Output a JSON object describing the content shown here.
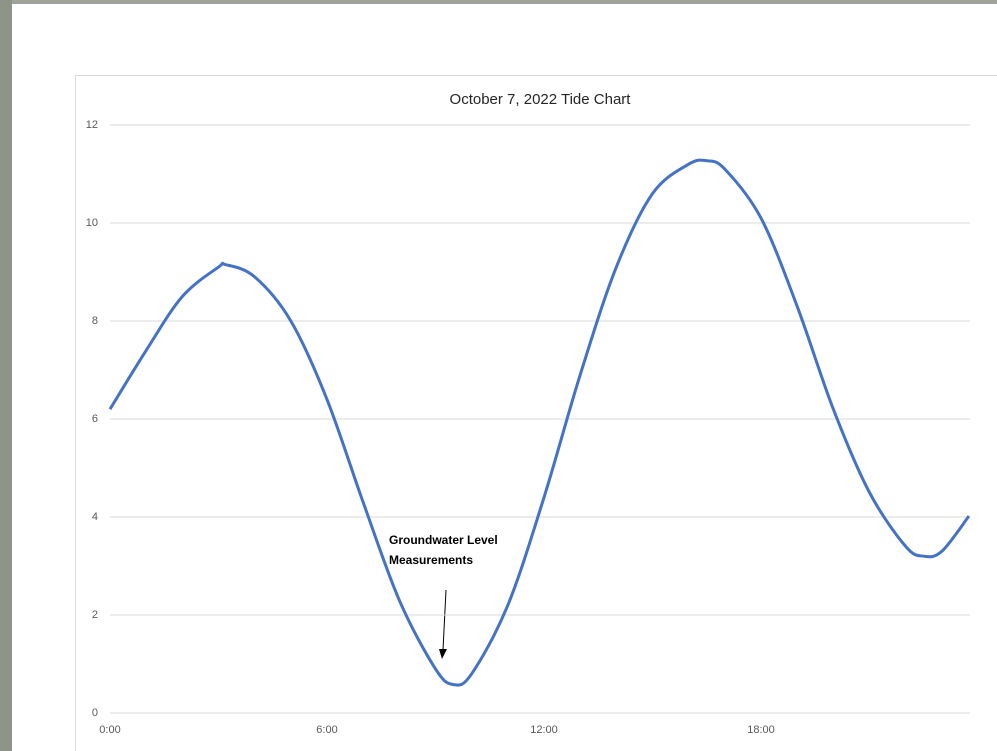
{
  "chart_data": {
    "type": "line",
    "title": "October 7, 2022 Tide Chart",
    "x": [
      0,
      1,
      2,
      3,
      3.2,
      4,
      5,
      6,
      7,
      8,
      9,
      9.5,
      10,
      11,
      12,
      13,
      14,
      15,
      16,
      16.5,
      17,
      18,
      19,
      20,
      21,
      22,
      22.5,
      23,
      23.75
    ],
    "series": [
      {
        "color": "#4472c4",
        "values": [
          6.2,
          7.4,
          8.5,
          9.1,
          9.15,
          8.9,
          8.0,
          6.4,
          4.3,
          2.3,
          0.9,
          0.58,
          0.8,
          2.2,
          4.4,
          6.9,
          9.1,
          10.6,
          11.2,
          11.27,
          11.1,
          10.1,
          8.3,
          6.2,
          4.5,
          3.4,
          3.2,
          3.3,
          4.02
        ]
      }
    ],
    "xlim": [
      0,
      24
    ],
    "xticks": [
      {
        "value": 0,
        "label": "0:00"
      },
      {
        "value": 6,
        "label": "6:00"
      },
      {
        "value": 12,
        "label": "12:00"
      },
      {
        "value": 18,
        "label": "18:00"
      }
    ],
    "ylim": [
      0,
      12
    ],
    "yticks": [
      0,
      2,
      4,
      6,
      8,
      10,
      12
    ],
    "grid": true,
    "annotation": [
      "Groundwater Level",
      "Measurements"
    ]
  }
}
